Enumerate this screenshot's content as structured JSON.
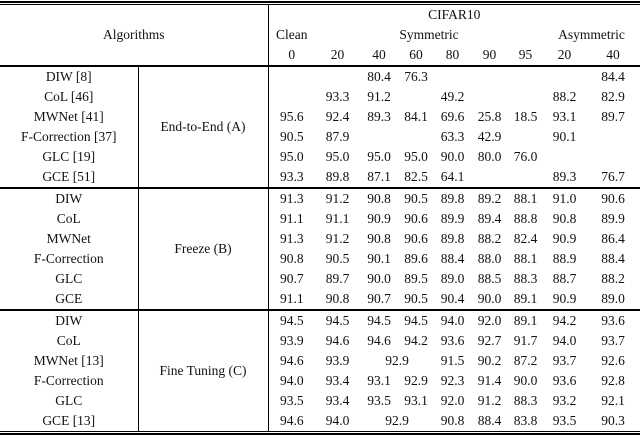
{
  "table": {
    "title": "CIFAR10",
    "algorithms_header": "Algorithms",
    "col_groups": {
      "clean": "Clean",
      "symmetric": "Symmetric",
      "asymmetric": "Asymmetric"
    },
    "noise_levels": [
      "0",
      "20",
      "40",
      "60",
      "80",
      "90",
      "95",
      "20",
      "40"
    ],
    "groups": [
      {
        "label": "End-to-End (A)",
        "rows": [
          {
            "name": "DIW [8]",
            "values": [
              "",
              "",
              "80.4",
              "76.3",
              "",
              "",
              "",
              "",
              "84.4"
            ]
          },
          {
            "name": "CoL [46]",
            "values": [
              "",
              "93.3",
              "91.2",
              "",
              "49.2",
              "",
              "",
              "88.2",
              "82.9"
            ]
          },
          {
            "name": "MWNet [41]",
            "values": [
              "95.6",
              "92.4",
              "89.3",
              "84.1",
              "69.6",
              "25.8",
              "18.5",
              "93.1",
              "89.7"
            ]
          },
          {
            "name": "F-Correction [37]",
            "values": [
              "90.5",
              "87.9",
              "",
              "",
              "63.3",
              "42.9",
              "",
              "90.1",
              ""
            ]
          },
          {
            "name": "GLC [19]",
            "values": [
              "95.0",
              "95.0",
              "95.0",
              "95.0",
              "90.0",
              "80.0",
              "76.0",
              "",
              ""
            ]
          },
          {
            "name": "GCE [51]",
            "values": [
              "93.3",
              "89.8",
              "87.1",
              "82.5",
              "64.1",
              "",
              "",
              "89.3",
              "76.7"
            ]
          }
        ]
      },
      {
        "label": "Freeze (B)",
        "rows": [
          {
            "name": "DIW",
            "values": [
              "91.3",
              "91.2",
              "90.8",
              "90.5",
              "89.8",
              "89.2",
              "88.1",
              "91.0",
              "90.6"
            ]
          },
          {
            "name": "CoL",
            "values": [
              "91.1",
              "91.1",
              "90.9",
              "90.6",
              "89.9",
              "89.4",
              "88.8",
              "90.8",
              "89.9"
            ]
          },
          {
            "name": "MWNet",
            "values": [
              "91.3",
              "91.2",
              "90.8",
              "90.6",
              "89.8",
              "88.2",
              "82.4",
              "90.9",
              "86.4"
            ]
          },
          {
            "name": "F-Correction",
            "values": [
              "90.8",
              "90.5",
              "90.1",
              "89.6",
              "88.4",
              "88.0",
              "88.1",
              "88.9",
              "88.4"
            ]
          },
          {
            "name": "GLC",
            "values": [
              "90.7",
              "89.7",
              "90.0",
              "89.5",
              "89.0",
              "88.5",
              "88.3",
              "88.7",
              "88.2"
            ]
          },
          {
            "name": "GCE",
            "values": [
              "91.1",
              "90.8",
              "90.7",
              "90.5",
              "90.4",
              "90.0",
              "89.1",
              "90.9",
              "89.0"
            ]
          }
        ]
      },
      {
        "label": "Fine Tuning (C)",
        "rows": [
          {
            "name": "DIW",
            "values": [
              "94.5",
              "94.5",
              "94.5",
              "94.5",
              "94.0",
              "92.0",
              "89.1",
              "94.2",
              "93.6"
            ]
          },
          {
            "name": "CoL",
            "values": [
              "93.9",
              "94.6",
              "94.6",
              "94.2",
              "93.6",
              "92.7",
              "91.7",
              "94.0",
              "93.7"
            ]
          },
          {
            "name": "MWNet [13]",
            "values": [
              "94.6",
              "93.9",
              {
                "text": "92.9",
                "colspan": 2
              },
              "91.5",
              "90.2",
              "87.2",
              "93.7",
              "92.6"
            ]
          },
          {
            "name": "F-Correction",
            "values": [
              "94.0",
              "93.4",
              "93.1",
              "92.9",
              "92.3",
              "91.4",
              "90.0",
              "93.6",
              "92.8"
            ]
          },
          {
            "name": "GLC",
            "values": [
              "93.5",
              "93.4",
              "93.5",
              "93.1",
              "92.0",
              "91.2",
              "88.3",
              "93.2",
              "92.1"
            ]
          },
          {
            "name": "GCE [13]",
            "values": [
              "94.6",
              "94.0",
              {
                "text": "92.9",
                "colspan": 2
              },
              "90.8",
              "88.4",
              "83.8",
              "93.5",
              "90.3"
            ]
          }
        ]
      }
    ]
  }
}
